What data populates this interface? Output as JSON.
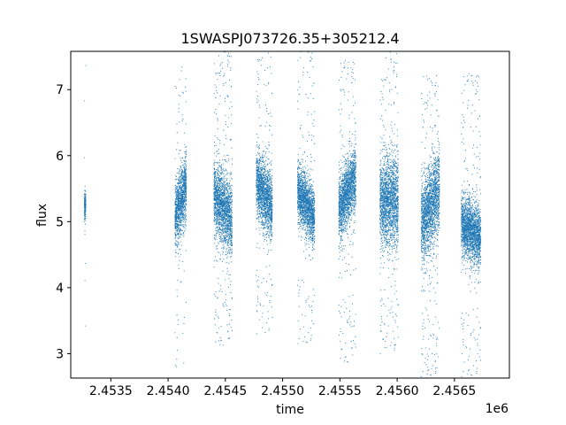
{
  "chart_data": {
    "type": "scatter",
    "title": "1SWASPJ073726.35+305212.4",
    "xlabel": "time",
    "ylabel": "flux",
    "x_offset_label": "1e6",
    "xlim": [
      2453150,
      2456980
    ],
    "ylim": [
      2.63,
      7.58
    ],
    "x_ticks": [
      2453500,
      2454000,
      2454500,
      2455000,
      2455500,
      2456000,
      2456500
    ],
    "x_tick_labels": [
      "2.4535",
      "2.4540",
      "2.4545",
      "2.4550",
      "2.4555",
      "2.4560",
      "2.4565"
    ],
    "y_ticks": [
      3,
      4,
      5,
      6,
      7
    ],
    "y_tick_labels": [
      "3",
      "4",
      "5",
      "6",
      "7"
    ],
    "grid": false,
    "marker_color": "#1f77b4",
    "series": [
      {
        "seasons": [
          {
            "x_start": 2453268,
            "x_end": 2453282,
            "y_start": 5.25,
            "y_end": 5.25,
            "spread": 0.2,
            "outlier": 0.05
          },
          {
            "x_start": 2454060,
            "x_end": 2454160,
            "y_start": 5.05,
            "y_end": 5.55,
            "spread": 0.45,
            "outlier": 0.08
          },
          {
            "x_start": 2454400,
            "x_end": 2454560,
            "y_start": 5.4,
            "y_end": 5.0,
            "spread": 0.5,
            "outlier": 0.12
          },
          {
            "x_start": 2454770,
            "x_end": 2454910,
            "y_start": 5.6,
            "y_end": 5.2,
            "spread": 0.45,
            "outlier": 0.1
          },
          {
            "x_start": 2455130,
            "x_end": 2455280,
            "y_start": 5.45,
            "y_end": 5.05,
            "spread": 0.38,
            "outlier": 0.1
          },
          {
            "x_start": 2455490,
            "x_end": 2455640,
            "y_start": 5.15,
            "y_end": 5.7,
            "spread": 0.45,
            "outlier": 0.1
          },
          {
            "x_start": 2455850,
            "x_end": 2456010,
            "y_start": 5.3,
            "y_end": 5.3,
            "spread": 0.6,
            "outlier": 0.12
          },
          {
            "x_start": 2456210,
            "x_end": 2456370,
            "y_start": 4.95,
            "y_end": 5.5,
            "spread": 0.55,
            "outlier": 0.12
          },
          {
            "x_start": 2456560,
            "x_end": 2456730,
            "y_start": 4.95,
            "y_end": 4.75,
            "spread": 0.4,
            "outlier": 0.1
          }
        ]
      }
    ]
  }
}
